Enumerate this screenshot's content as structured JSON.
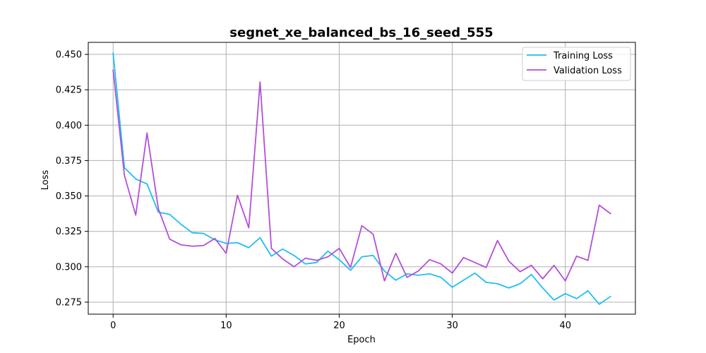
{
  "chart_data": {
    "type": "line",
    "title": "segnet_xe_balanced_bs_16_seed_555",
    "xlabel": "Epoch",
    "ylabel": "Loss",
    "xlim": [
      -2.2,
      46.2
    ],
    "ylim": [
      0.2665,
      0.4585
    ],
    "xticks": [
      0,
      10,
      20,
      30,
      40
    ],
    "yticks": [
      0.275,
      0.3,
      0.325,
      0.35,
      0.375,
      0.4,
      0.425,
      0.45
    ],
    "ytick_labels": [
      "0.275",
      "0.300",
      "0.325",
      "0.350",
      "0.375",
      "0.400",
      "0.425",
      "0.450"
    ],
    "grid": true,
    "legend_position": "top-right",
    "x": [
      0,
      1,
      2,
      3,
      4,
      5,
      6,
      7,
      8,
      9,
      10,
      11,
      12,
      13,
      14,
      15,
      16,
      17,
      18,
      19,
      20,
      21,
      22,
      23,
      24,
      25,
      26,
      27,
      28,
      29,
      30,
      31,
      32,
      33,
      34,
      35,
      36,
      37,
      38,
      39,
      40,
      41,
      42,
      43,
      44
    ],
    "series": [
      {
        "name": "Training Loss",
        "color": "#1fbff0",
        "values": [
          0.451,
          0.37,
          0.362,
          0.3585,
          0.3385,
          0.337,
          0.33,
          0.324,
          0.3235,
          0.319,
          0.3165,
          0.317,
          0.3135,
          0.3205,
          0.3075,
          0.3125,
          0.308,
          0.302,
          0.303,
          0.311,
          0.305,
          0.2975,
          0.307,
          0.308,
          0.297,
          0.2905,
          0.295,
          0.294,
          0.295,
          0.2925,
          0.2855,
          0.2905,
          0.2955,
          0.289,
          0.288,
          0.285,
          0.288,
          0.2945,
          0.285,
          0.2765,
          0.281,
          0.2775,
          0.283,
          0.2735,
          0.279
        ]
      },
      {
        "name": "Validation Loss",
        "color": "#b44fd8",
        "values": [
          0.439,
          0.3645,
          0.3365,
          0.3945,
          0.341,
          0.3195,
          0.3155,
          0.3145,
          0.315,
          0.32,
          0.3095,
          0.3505,
          0.3275,
          0.4305,
          0.313,
          0.3055,
          0.3,
          0.306,
          0.3045,
          0.307,
          0.313,
          0.2995,
          0.329,
          0.323,
          0.29,
          0.3095,
          0.2925,
          0.297,
          0.305,
          0.302,
          0.2955,
          0.3065,
          0.303,
          0.2995,
          0.3185,
          0.304,
          0.2965,
          0.301,
          0.2915,
          0.301,
          0.29,
          0.3075,
          0.3045,
          0.3435,
          0.3375
        ]
      }
    ]
  }
}
